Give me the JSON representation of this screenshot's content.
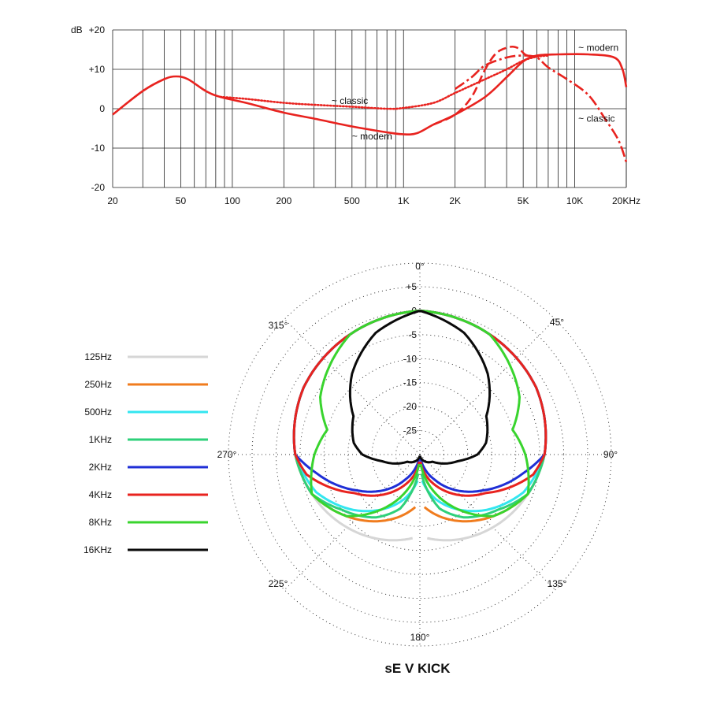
{
  "title": "sE V KICK",
  "chart_data": [
    {
      "type": "line",
      "name": "frequency-response",
      "x_scale": "log",
      "xlim": [
        20,
        20000
      ],
      "ylim": [
        -20,
        20
      ],
      "grid": true,
      "ylabel": "dB",
      "x_tick_labels": [
        {
          "value": 20,
          "label": "20"
        },
        {
          "value": 50,
          "label": "50"
        },
        {
          "value": 100,
          "label": "100"
        },
        {
          "value": 200,
          "label": "200"
        },
        {
          "value": 500,
          "label": "500"
        },
        {
          "value": 1000,
          "label": "1K"
        },
        {
          "value": 2000,
          "label": "2K"
        },
        {
          "value": 5000,
          "label": "5K"
        },
        {
          "value": 10000,
          "label": "10K"
        },
        {
          "value": 20000,
          "label": "20KHz"
        }
      ],
      "y_tick_labels": [
        {
          "value": 20,
          "label": "+20"
        },
        {
          "value": 10,
          "label": "+10"
        },
        {
          "value": 0,
          "label": "0"
        },
        {
          "value": -10,
          "label": "-10"
        },
        {
          "value": -20,
          "label": "-20"
        }
      ],
      "color": "#e8231f",
      "series": [
        {
          "label_words": "modern",
          "style": "solid",
          "points": [
            [
              20,
              -1.5
            ],
            [
              30,
              4.5
            ],
            [
              40,
              7.5
            ],
            [
              47,
              8.2
            ],
            [
              55,
              7.5
            ],
            [
              70,
              4.5
            ],
            [
              85,
              3
            ],
            [
              120,
              1.5
            ],
            [
              200,
              -1
            ],
            [
              300,
              -2.5
            ],
            [
              500,
              -4.5
            ],
            [
              800,
              -6
            ],
            [
              1000,
              -6.5
            ],
            [
              1200,
              -6.2
            ],
            [
              1500,
              -4
            ],
            [
              2000,
              -1.5
            ],
            [
              3000,
              3
            ],
            [
              4000,
              8
            ],
            [
              5000,
              12
            ],
            [
              6000,
              13.5
            ],
            [
              8000,
              13.8
            ],
            [
              12000,
              13.8
            ],
            [
              17000,
              13
            ],
            [
              19000,
              10
            ],
            [
              20000,
              5.5
            ]
          ]
        },
        {
          "label_words": "classic",
          "style": "dotted",
          "points": [
            [
              85,
              3
            ],
            [
              120,
              2.5
            ],
            [
              200,
              1.5
            ],
            [
              300,
              1
            ],
            [
              500,
              0.5
            ],
            [
              800,
              0
            ],
            [
              1000,
              0.2
            ],
            [
              1500,
              1.5
            ],
            [
              2000,
              4
            ],
            [
              3000,
              7.5
            ],
            [
              4000,
              10
            ],
            [
              5000,
              12.2
            ],
            [
              6000,
              13.2
            ],
            [
              7000,
              13.5
            ]
          ]
        },
        {
          "label_words": "modern",
          "style": "dashed",
          "points": [
            [
              1500,
              -4
            ],
            [
              2000,
              -1.5
            ],
            [
              2500,
              3
            ],
            [
              3000,
              10
            ],
            [
              3500,
              14.2
            ],
            [
              4200,
              15.7
            ],
            [
              4700,
              15.3
            ],
            [
              5200,
              13.6
            ],
            [
              6000,
              13.3
            ]
          ]
        },
        {
          "label_words": "classic",
          "style": "dash-dot",
          "points": [
            [
              2000,
              5
            ],
            [
              2500,
              8
            ],
            [
              3000,
              11
            ],
            [
              4000,
              13
            ],
            [
              5000,
              13.5
            ],
            [
              6000,
              13
            ],
            [
              7000,
              10.5
            ],
            [
              9000,
              7.5
            ],
            [
              12000,
              3.5
            ],
            [
              15000,
              -2.5
            ],
            [
              18000,
              -8
            ],
            [
              20000,
              -13.5
            ]
          ]
        }
      ],
      "annotations": [
        {
          "symbol": "~",
          "text": "classic",
          "at": [
            380,
            2
          ]
        },
        {
          "symbol": "~",
          "text": "modern",
          "at": [
            500,
            -7
          ]
        },
        {
          "symbol": "~",
          "text": "modern",
          "at": [
            10500,
            15.5
          ]
        },
        {
          "symbol": "~",
          "text": "classic",
          "at": [
            10500,
            -2.5
          ]
        }
      ]
    },
    {
      "type": "polar",
      "name": "polar-pattern",
      "r_range_db": [
        -30,
        5
      ],
      "radial_labels": [
        {
          "value": 5,
          "label": "+5"
        },
        {
          "value": 0,
          "label": "0"
        },
        {
          "value": -5,
          "label": "-5"
        },
        {
          "value": -10,
          "label": "-10"
        },
        {
          "value": -15,
          "label": "-15"
        },
        {
          "value": -20,
          "label": "-20"
        },
        {
          "value": -25,
          "label": "-25"
        }
      ],
      "angle_labels": [
        "0°",
        "45°",
        "90°",
        "135°",
        "180°",
        "225°",
        "270°",
        "315°"
      ],
      "angle_values_deg": [
        0,
        45,
        90,
        135,
        180,
        225,
        270,
        315
      ],
      "series": [
        {
          "name": "125Hz",
          "color": "#d6d6d6",
          "theta_deg": [
            0,
            30,
            60,
            90,
            120,
            150,
            180
          ],
          "r_db": [
            0,
            -1,
            -2,
            -4,
            -7,
            -10,
            -13
          ]
        },
        {
          "name": "250Hz",
          "color": "#f07c1e",
          "theta_deg": [
            0,
            30,
            60,
            90,
            110,
            130,
            160,
            180
          ],
          "r_db": [
            0,
            -1,
            -2,
            -4,
            -6,
            -10,
            -16,
            -20
          ]
        },
        {
          "name": "500Hz",
          "color": "#33e6f0",
          "theta_deg": [
            0,
            30,
            60,
            90,
            110,
            130,
            160,
            180
          ],
          "r_db": [
            0,
            -1,
            -2,
            -4,
            -7,
            -12,
            -20,
            -26
          ]
        },
        {
          "name": "1KHz",
          "color": "#2ed07a",
          "theta_deg": [
            0,
            30,
            60,
            90,
            110,
            125,
            145,
            160,
            175,
            180
          ],
          "r_db": [
            0,
            -1,
            -2,
            -4,
            -6,
            -10,
            -14,
            -18,
            -26,
            -30
          ]
        },
        {
          "name": "2KHz",
          "color": "#1f2fd6",
          "theta_deg": [
            0,
            30,
            60,
            90,
            100,
            120,
            150,
            170,
            180
          ],
          "r_db": [
            0,
            -1,
            -2,
            -4,
            -8,
            -15,
            -24,
            -29,
            -30
          ]
        },
        {
          "name": "4KHz",
          "color": "#e8231f",
          "theta_deg": [
            0,
            30,
            60,
            90,
            100,
            120,
            150,
            170,
            180
          ],
          "r_db": [
            0,
            -1,
            -2,
            -4,
            -6,
            -14,
            -22,
            -27,
            -30
          ]
        },
        {
          "name": "8KHz",
          "color": "#39d42e",
          "theta_deg": [
            0,
            30,
            60,
            75,
            90,
            110,
            130,
            155,
            180
          ],
          "r_db": [
            0,
            -1,
            -6,
            -10,
            -8,
            -6,
            -10,
            -20,
            -30
          ]
        },
        {
          "name": "16KHz",
          "color": "#0a0a0a",
          "theta_deg": [
            0,
            20,
            40,
            60,
            80,
            90,
            100,
            120,
            160,
            180
          ],
          "r_db": [
            0,
            -3,
            -8,
            -14,
            -16,
            -18,
            -22,
            -27,
            -29,
            -30
          ]
        }
      ]
    }
  ]
}
